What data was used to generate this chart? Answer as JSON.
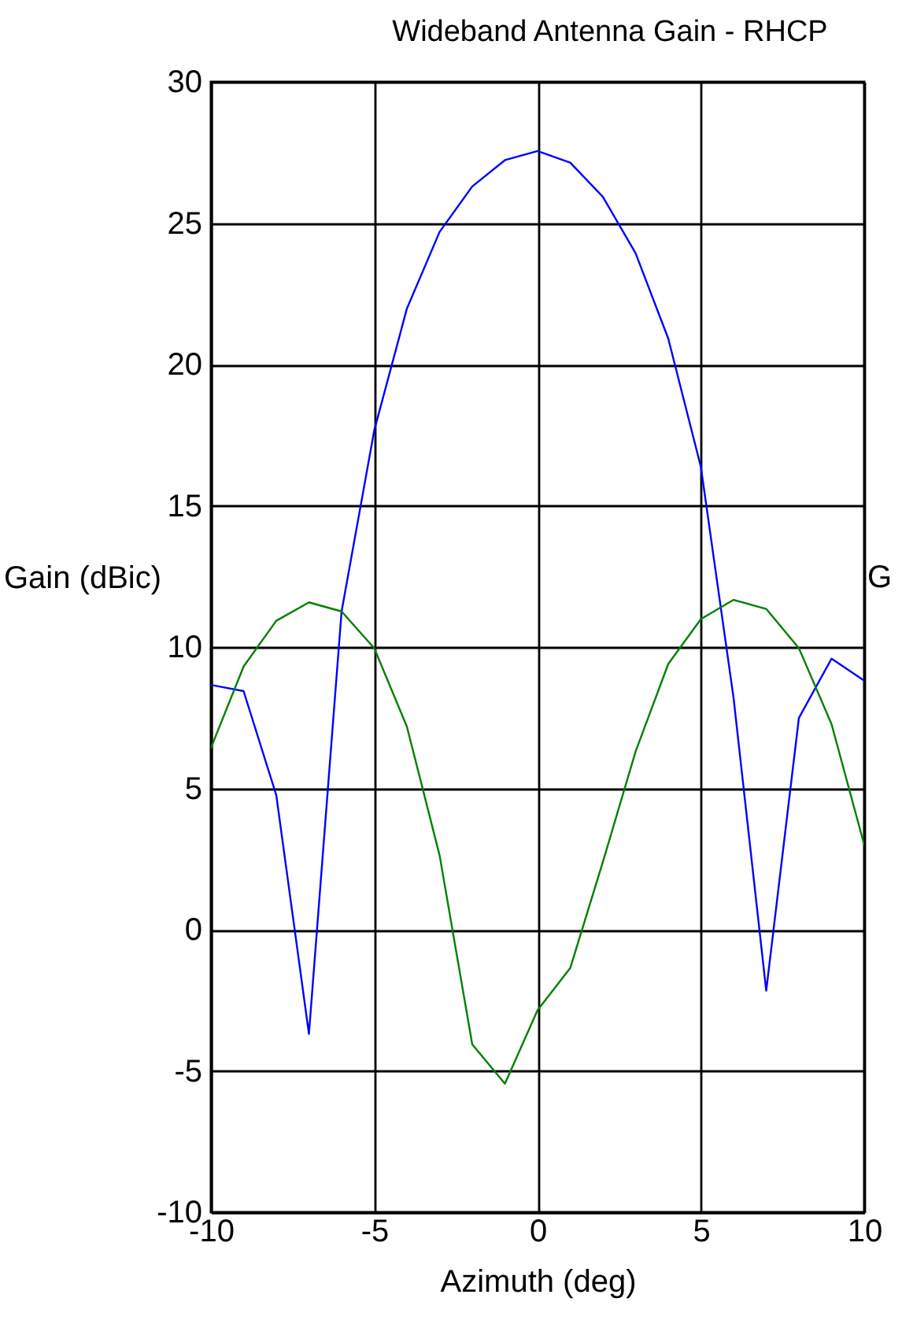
{
  "chart_data": {
    "type": "line",
    "title": "Wideband Antenna Gain - RHCP",
    "xlabel": "Azimuth (deg)",
    "ylabel": "Gain (dBic)",
    "y2label": "G",
    "x": [
      -10,
      -9,
      -8,
      -7,
      -6,
      -5,
      -4,
      -3,
      -2,
      -1,
      0,
      1,
      2,
      3,
      4,
      5,
      6,
      7,
      8,
      9,
      10
    ],
    "series": [
      {
        "color": "#0000ff",
        "values": [
          8.66,
          8.44,
          4.76,
          -3.69,
          11.26,
          17.67,
          21.98,
          24.69,
          26.3,
          27.23,
          27.55,
          27.14,
          25.93,
          23.94,
          20.92,
          16.37,
          8.2,
          -2.16,
          7.49,
          9.59,
          8.81
        ]
      },
      {
        "color": "#008000",
        "values": [
          6.43,
          9.31,
          10.93,
          11.58,
          11.26,
          9.96,
          7.18,
          2.63,
          -4.06,
          -5.45,
          -2.85,
          -1.36,
          2.4,
          6.3,
          9.4,
          10.99,
          11.67,
          11.35,
          9.96,
          7.27,
          3.0
        ]
      }
    ],
    "xlim": [
      -10,
      10
    ],
    "xticks": [
      -10,
      -5,
      0,
      5,
      10
    ],
    "ylim": [
      -10,
      30
    ],
    "yticks": [
      -10,
      -5,
      0,
      5,
      10,
      15,
      20,
      25,
      30
    ],
    "grid": true,
    "marker": "none",
    "line_style": "solid"
  }
}
